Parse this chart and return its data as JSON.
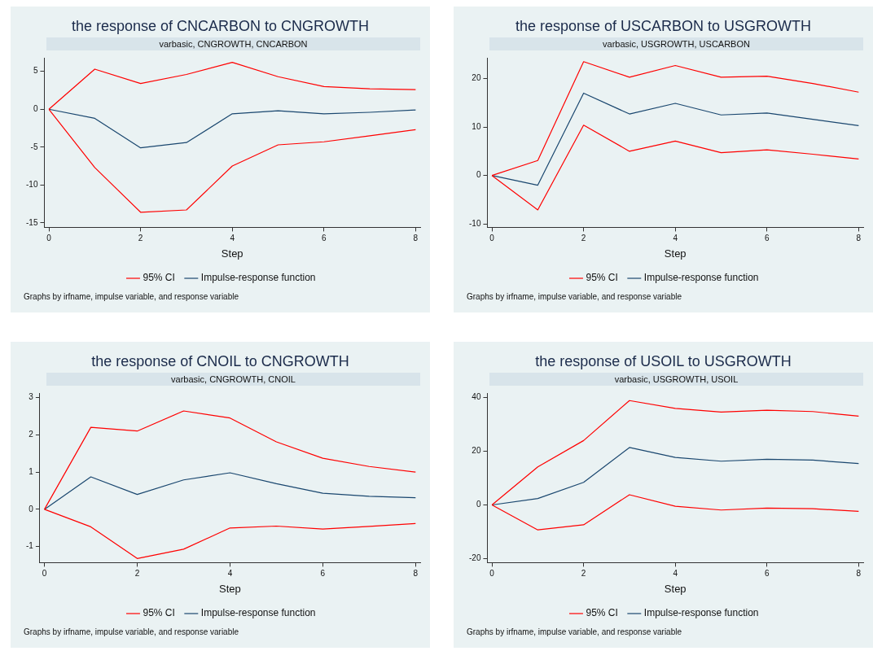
{
  "chart_data": [
    {
      "type": "line",
      "title": "the response of CNCARBON to CNGROWTH",
      "subtitle": "varbasic, CNGROWTH, CNCARBON",
      "xlabel": "Step",
      "x": [
        0,
        1,
        2,
        3,
        4,
        5,
        6,
        7,
        8
      ],
      "xlim": [
        -0.1,
        8.1
      ],
      "xticks": [
        0,
        2,
        4,
        6,
        8
      ],
      "ylim": [
        -15.6,
        6.8
      ],
      "yticks": [
        -15,
        -10,
        -5,
        0,
        5
      ],
      "grid": false,
      "legend": "bottom",
      "marker": "none",
      "line_style": "solid",
      "annotations": [
        "Graphs by irfname, impulse variable, and response variable"
      ],
      "series": [
        {
          "name": "95% CI",
          "color": "#ff0000",
          "values": [
            0,
            5.3,
            3.4,
            4.6,
            6.2,
            4.3,
            3.0,
            2.7,
            2.6
          ]
        },
        {
          "color": "#ff0000",
          "values": [
            0,
            -7.7,
            -13.6,
            -13.3,
            -7.5,
            -4.7,
            -4.3,
            -3.5,
            -2.7
          ]
        },
        {
          "name": "Impulse-response function",
          "color": "#1a476f",
          "values": [
            0,
            -1.2,
            -5.1,
            -4.4,
            -0.6,
            -0.2,
            -0.6,
            -0.4,
            -0.1
          ]
        }
      ]
    },
    {
      "type": "line",
      "title": "the response of USCARBON to USGROWTH",
      "subtitle": "varbasic, USGROWTH, USCARBON",
      "xlabel": "Step",
      "x": [
        0,
        1,
        2,
        3,
        4,
        5,
        6,
        7,
        8
      ],
      "xlim": [
        -0.1,
        8.1
      ],
      "xticks": [
        0,
        2,
        4,
        6,
        8
      ],
      "ylim": [
        -10.7,
        24.3
      ],
      "yticks": [
        -10,
        0,
        10,
        20
      ],
      "grid": false,
      "legend": "bottom",
      "marker": "none",
      "line_style": "solid",
      "annotations": [
        "Graphs by irfname, impulse variable, and response variable"
      ],
      "series": [
        {
          "name": "95% CI",
          "color": "#ff0000",
          "values": [
            0,
            3.1,
            23.5,
            20.3,
            22.7,
            20.3,
            20.5,
            19.0,
            17.2
          ]
        },
        {
          "color": "#ff0000",
          "values": [
            0,
            -7.1,
            10.4,
            5.0,
            7.1,
            4.7,
            5.3,
            4.4,
            3.4
          ]
        },
        {
          "name": "Impulse-response function",
          "color": "#1a476f",
          "values": [
            0,
            -2.0,
            17.0,
            12.7,
            14.9,
            12.5,
            12.9,
            11.6,
            10.3
          ]
        }
      ]
    },
    {
      "type": "line",
      "title": "the response of CNOIL to CNGROWTH",
      "subtitle": "varbasic, CNGROWTH, CNOIL",
      "xlabel": "Step",
      "x": [
        0,
        1,
        2,
        3,
        4,
        5,
        6,
        7,
        8
      ],
      "xlim": [
        -0.1,
        8.1
      ],
      "xticks": [
        0,
        2,
        4,
        6,
        8
      ],
      "ylim": [
        -1.43,
        3.12
      ],
      "yticks": [
        -1,
        0,
        1,
        2,
        3
      ],
      "grid": false,
      "legend": "bottom",
      "marker": "none",
      "line_style": "solid",
      "annotations": [
        "Graphs by irfname, impulse variable, and response variable"
      ],
      "series": [
        {
          "name": "95% CI",
          "color": "#ff0000",
          "values": [
            0,
            2.2,
            2.1,
            2.64,
            2.45,
            1.81,
            1.37,
            1.15,
            1.0
          ]
        },
        {
          "color": "#ff0000",
          "values": [
            0,
            -0.47,
            -1.32,
            -1.07,
            -0.5,
            -0.45,
            -0.53,
            -0.46,
            -0.38
          ]
        },
        {
          "name": "Impulse-response function",
          "color": "#1a476f",
          "values": [
            0,
            0.87,
            0.4,
            0.79,
            0.98,
            0.69,
            0.43,
            0.35,
            0.31
          ]
        }
      ]
    },
    {
      "type": "line",
      "title": "the response of USOIL to USGROWTH",
      "subtitle": "varbasic, USGROWTH, USOIL",
      "xlabel": "Step",
      "x": [
        0,
        1,
        2,
        3,
        4,
        5,
        6,
        7,
        8
      ],
      "xlim": [
        -0.1,
        8.1
      ],
      "xticks": [
        0,
        2,
        4,
        6,
        8
      ],
      "ylim": [
        -21.5,
        41.7
      ],
      "yticks": [
        -20,
        0,
        20,
        40
      ],
      "grid": false,
      "legend": "bottom",
      "marker": "none",
      "line_style": "solid",
      "annotations": [
        "Graphs by irfname, impulse variable, and response variable"
      ],
      "series": [
        {
          "name": "95% CI",
          "color": "#ff0000",
          "values": [
            0,
            14.2,
            24.0,
            38.9,
            36.0,
            34.6,
            35.3,
            34.8,
            33.1
          ]
        },
        {
          "color": "#ff0000",
          "values": [
            0,
            -9.3,
            -7.4,
            3.8,
            -0.5,
            -1.9,
            -1.2,
            -1.4,
            -2.4
          ]
        },
        {
          "name": "Impulse-response function",
          "color": "#1a476f",
          "values": [
            0,
            2.4,
            8.4,
            21.4,
            17.7,
            16.3,
            17.0,
            16.7,
            15.4
          ]
        }
      ]
    }
  ]
}
